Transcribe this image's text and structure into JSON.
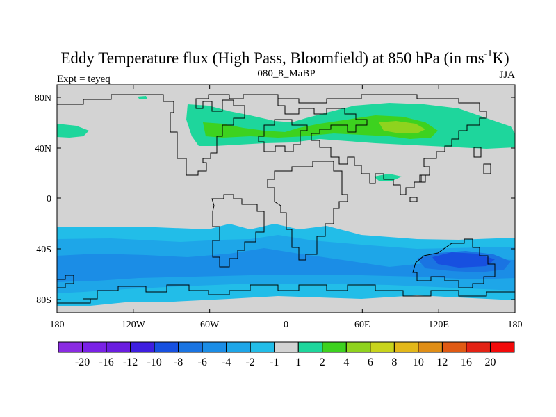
{
  "header": {
    "title_main": "Eddy Temperature flux (High Pass, Bloomfield) at 850 hPa (in ms",
    "title_sup": "-1",
    "title_end": "K)",
    "subtitle_left": "Expt = teyeq",
    "subtitle_center": "080_8_MaBP",
    "subtitle_right": "JJA"
  },
  "map": {
    "lat_labels": [
      "80N",
      "40N",
      "0",
      "40S",
      "80S"
    ],
    "lon_labels": [
      "180",
      "120W",
      "60W",
      "0",
      "60E",
      "120E",
      "180"
    ],
    "land_color": "#d3d3d3",
    "coast_color": "#000000"
  },
  "colorbar": {
    "labels": [
      "-20",
      "-16",
      "-12",
      "-10",
      "-8",
      "-6",
      "-4",
      "-2",
      "-1",
      "1",
      "2",
      "4",
      "6",
      "8",
      "10",
      "12",
      "16",
      "20"
    ],
    "colors": [
      "#8a2be2",
      "#7a22e6",
      "#6a1de0",
      "#3e1ee0",
      "#1750e0",
      "#1a74e2",
      "#1b8de6",
      "#1ea6e8",
      "#22bde8",
      "#d3d3d3",
      "#1ed69c",
      "#3dd21f",
      "#8fd31e",
      "#c8d41c",
      "#e3b81a",
      "#e08e16",
      "#e05a14",
      "#e32214",
      "#f20a0a"
    ]
  }
}
